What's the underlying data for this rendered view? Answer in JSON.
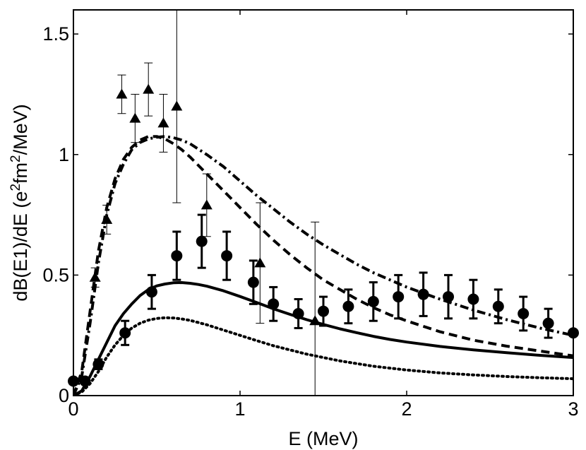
{
  "chart_data": {
    "type": "line",
    "title": "",
    "xlabel": "E (MeV)",
    "ylabel_parts": [
      "dB(E1)/dE (e",
      "2",
      "fm",
      "2",
      "/MeV)"
    ],
    "xlim": [
      0,
      3
    ],
    "ylim": [
      0,
      1.6
    ],
    "xticks": [
      0,
      1,
      2,
      3
    ],
    "xtick_labels": [
      "0",
      "1",
      "2",
      "3"
    ],
    "yticks": [
      0,
      0.5,
      1,
      1.5
    ],
    "ytick_labels": [
      "0",
      "0.5",
      "1",
      "1.5"
    ],
    "grid": false,
    "series": [
      {
        "name": "solid",
        "kind": "line",
        "style": "solid",
        "x": [
          0,
          0.05,
          0.1,
          0.15,
          0.2,
          0.25,
          0.3,
          0.35,
          0.4,
          0.45,
          0.5,
          0.55,
          0.6,
          0.65,
          0.7,
          0.75,
          0.8,
          0.9,
          1.0,
          1.1,
          1.2,
          1.3,
          1.4,
          1.5,
          1.6,
          1.7,
          1.8,
          1.9,
          2.0,
          2.2,
          2.4,
          2.6,
          2.8,
          3.0
        ],
        "y": [
          0,
          0.02,
          0.08,
          0.15,
          0.22,
          0.29,
          0.34,
          0.38,
          0.415,
          0.44,
          0.455,
          0.463,
          0.468,
          0.469,
          0.466,
          0.461,
          0.454,
          0.435,
          0.411,
          0.386,
          0.36,
          0.337,
          0.315,
          0.295,
          0.277,
          0.261,
          0.246,
          0.233,
          0.222,
          0.204,
          0.19,
          0.178,
          0.167,
          0.158
        ]
      },
      {
        "name": "dotted",
        "kind": "line",
        "style": "dotted",
        "x": [
          0,
          0.05,
          0.1,
          0.15,
          0.2,
          0.25,
          0.3,
          0.35,
          0.4,
          0.45,
          0.5,
          0.55,
          0.6,
          0.65,
          0.7,
          0.8,
          0.9,
          1.0,
          1.1,
          1.2,
          1.4,
          1.6,
          1.8,
          2.0,
          2.2,
          2.4,
          2.6,
          2.8,
          3.0
        ],
        "y": [
          0,
          0.015,
          0.05,
          0.1,
          0.16,
          0.21,
          0.25,
          0.28,
          0.3,
          0.313,
          0.32,
          0.323,
          0.322,
          0.318,
          0.312,
          0.294,
          0.272,
          0.25,
          0.228,
          0.207,
          0.172,
          0.144,
          0.122,
          0.106,
          0.094,
          0.086,
          0.079,
          0.074,
          0.07
        ]
      },
      {
        "name": "dashed",
        "kind": "line",
        "style": "dashed",
        "x": [
          0,
          0.05,
          0.1,
          0.15,
          0.2,
          0.25,
          0.3,
          0.35,
          0.4,
          0.45,
          0.5,
          0.55,
          0.6,
          0.65,
          0.7,
          0.8,
          0.9,
          1.0,
          1.1,
          1.2,
          1.3,
          1.4,
          1.5,
          1.6,
          1.7,
          1.8,
          1.9,
          2.0,
          2.2,
          2.4,
          2.6,
          2.8,
          3.0
        ],
        "y": [
          0,
          0.1,
          0.35,
          0.6,
          0.78,
          0.9,
          0.98,
          1.03,
          1.06,
          1.075,
          1.075,
          1.065,
          1.045,
          1.02,
          0.99,
          0.92,
          0.85,
          0.78,
          0.71,
          0.645,
          0.585,
          0.53,
          0.48,
          0.44,
          0.4,
          0.365,
          0.335,
          0.31,
          0.265,
          0.23,
          0.205,
          0.185,
          0.165
        ]
      },
      {
        "name": "dash-dot",
        "kind": "line",
        "style": "dashdot",
        "x": [
          0,
          0.05,
          0.1,
          0.15,
          0.2,
          0.25,
          0.3,
          0.35,
          0.4,
          0.45,
          0.5,
          0.55,
          0.6,
          0.65,
          0.7,
          0.8,
          0.9,
          1.0,
          1.1,
          1.2,
          1.3,
          1.4,
          1.5,
          1.6,
          1.7,
          1.8,
          1.9,
          2.0,
          2.2,
          2.4,
          2.6,
          2.8,
          3.0
        ],
        "y": [
          0,
          0.08,
          0.3,
          0.55,
          0.75,
          0.88,
          0.96,
          1.02,
          1.05,
          1.065,
          1.072,
          1.075,
          1.07,
          1.06,
          1.045,
          1.0,
          0.95,
          0.89,
          0.83,
          0.775,
          0.72,
          0.67,
          0.625,
          0.585,
          0.545,
          0.51,
          0.48,
          0.45,
          0.4,
          0.355,
          0.315,
          0.28,
          0.25
        ]
      },
      {
        "name": "triangles",
        "kind": "scatter",
        "marker": "triangle",
        "x": [
          0.13,
          0.2,
          0.29,
          0.37,
          0.45,
          0.54,
          0.62,
          0.8,
          1.12,
          1.45
        ],
        "y": [
          0.49,
          0.73,
          1.25,
          1.15,
          1.27,
          1.13,
          1.2,
          0.79,
          0.55,
          0.31
        ],
        "err": [
          0.04,
          0.06,
          0.08,
          0.1,
          0.11,
          0.12,
          0.4,
          0.13,
          0.25,
          0.41
        ]
      },
      {
        "name": "circles",
        "kind": "scatter",
        "marker": "circle",
        "x": [
          0.0,
          0.07,
          0.15,
          0.31,
          0.47,
          0.62,
          0.77,
          0.92,
          1.08,
          1.2,
          1.35,
          1.5,
          1.65,
          1.8,
          1.95,
          2.1,
          2.25,
          2.4,
          2.55,
          2.7,
          2.85,
          3.0
        ],
        "y": [
          0.06,
          0.06,
          0.13,
          0.26,
          0.43,
          0.58,
          0.64,
          0.58,
          0.47,
          0.38,
          0.34,
          0.35,
          0.37,
          0.39,
          0.41,
          0.42,
          0.41,
          0.4,
          0.37,
          0.34,
          0.3,
          0.26
        ],
        "err": [
          0.0,
          0.0,
          0.02,
          0.05,
          0.07,
          0.1,
          0.11,
          0.1,
          0.09,
          0.07,
          0.06,
          0.06,
          0.07,
          0.08,
          0.09,
          0.09,
          0.09,
          0.08,
          0.07,
          0.07,
          0.06,
          0.0
        ]
      }
    ]
  }
}
